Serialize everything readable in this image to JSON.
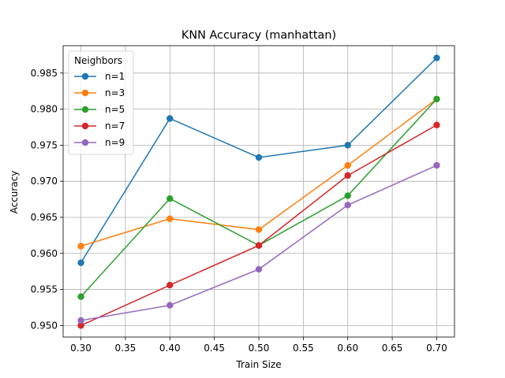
{
  "chart_data": {
    "type": "line",
    "title": "KNN Accuracy (manhattan)",
    "xlabel": "Train Size",
    "ylabel": "Accuracy",
    "xlim": [
      0.28,
      0.72
    ],
    "ylim": [
      0.9484,
      0.9888
    ],
    "xticks": [
      0.3,
      0.35,
      0.4,
      0.45,
      0.5,
      0.55,
      0.6,
      0.65,
      0.7
    ],
    "xtick_labels": [
      "0.30",
      "0.35",
      "0.40",
      "0.45",
      "0.50",
      "0.55",
      "0.60",
      "0.65",
      "0.70"
    ],
    "yticks": [
      0.95,
      0.955,
      0.96,
      0.965,
      0.97,
      0.975,
      0.98,
      0.985
    ],
    "ytick_labels": [
      "0.950",
      "0.955",
      "0.960",
      "0.965",
      "0.970",
      "0.975",
      "0.980",
      "0.985"
    ],
    "grid": true,
    "legend": {
      "title": "Neighbors",
      "placement": "top-left"
    },
    "x": [
      0.3,
      0.4,
      0.5,
      0.6,
      0.7
    ],
    "series": [
      {
        "name": "n=1",
        "color": "#1f77b4",
        "values": [
          0.9587,
          0.9787,
          0.9733,
          0.975,
          0.9871
        ]
      },
      {
        "name": "n=3",
        "color": "#ff7f0e",
        "values": [
          0.961,
          0.9648,
          0.9633,
          0.9722,
          0.9814
        ]
      },
      {
        "name": "n=5",
        "color": "#2ca02c",
        "values": [
          0.954,
          0.9676,
          0.9611,
          0.968,
          0.9814
        ]
      },
      {
        "name": "n=7",
        "color": "#d62728",
        "values": [
          0.95,
          0.9556,
          0.9611,
          0.9708,
          0.9778
        ]
      },
      {
        "name": "n=9",
        "color": "#9467bd",
        "values": [
          0.9507,
          0.9528,
          0.9578,
          0.9667,
          0.9722
        ]
      }
    ]
  }
}
